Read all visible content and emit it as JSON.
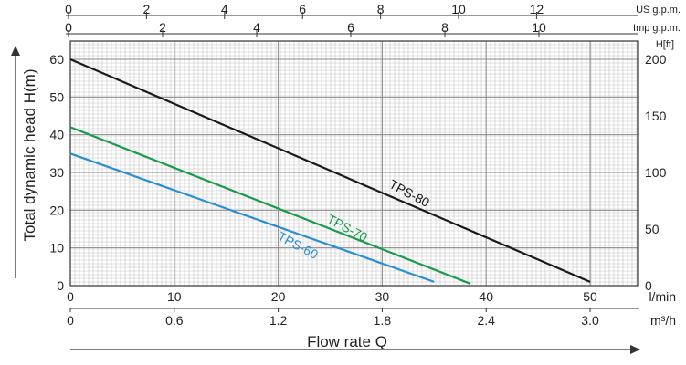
{
  "chart_data": {
    "type": "line",
    "xlabel": "Flow rate Q",
    "ylabel": "Total dynamic head H(m)",
    "x_unit": "l/min",
    "x": [
      0,
      10,
      20,
      30,
      40,
      50
    ],
    "xlim": [
      0,
      54
    ],
    "ylim": [
      0,
      65
    ],
    "y_ticks": [
      0,
      10,
      20,
      30,
      40,
      50,
      60
    ],
    "grid": true,
    "secondary_axes": {
      "top_us_gpm": {
        "unit": "US g.p.m.",
        "ticks": [
          "0",
          "2",
          "4",
          "6",
          "8",
          "10",
          "12"
        ],
        "values": [
          0,
          2,
          4,
          6,
          8,
          10,
          12
        ]
      },
      "top_imp_gpm": {
        "unit": "Imp g.p.m.",
        "ticks": [
          "0",
          "2",
          "4",
          "6",
          "8",
          "10"
        ],
        "values": [
          0,
          2,
          4,
          6,
          8,
          10
        ]
      },
      "bottom_m3h": {
        "unit": "m³/h",
        "ticks": [
          "0",
          "0.6",
          "1.2",
          "1.8",
          "2.4",
          "3.0"
        ],
        "values": [
          0,
          0.6,
          1.2,
          1.8,
          2.4,
          3.0
        ]
      },
      "right_ft": {
        "unit": "H[ft]",
        "ticks": [
          "0",
          "50",
          "100",
          "150",
          "200"
        ],
        "values": [
          0,
          50,
          100,
          150,
          200
        ]
      }
    },
    "series": [
      {
        "name": "TPS-80",
        "color": "#1a1a1a",
        "points": [
          [
            0,
            60
          ],
          [
            50,
            1
          ]
        ]
      },
      {
        "name": "TPS-70",
        "color": "#1a9a4a",
        "points": [
          [
            0,
            42
          ],
          [
            38.5,
            0.5
          ]
        ]
      },
      {
        "name": "TPS-60",
        "color": "#2a8fd0",
        "points": [
          [
            0,
            35
          ],
          [
            35,
            1
          ]
        ]
      }
    ]
  }
}
